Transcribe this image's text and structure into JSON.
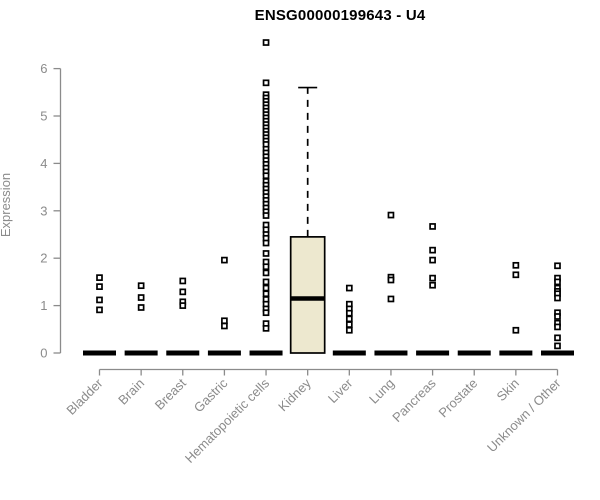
{
  "chart_data": {
    "type": "boxplot",
    "title": "ENSG00000199643 - U4",
    "ylabel": "Expression",
    "xlabel": "",
    "ylim": [
      0,
      6
    ],
    "yticks": [
      0,
      1,
      2,
      3,
      4,
      5,
      6
    ],
    "grid": false,
    "legend": "none",
    "categories": [
      "Bladder",
      "Brain",
      "Breast",
      "Gastric",
      "Hematopoietic cells",
      "Kidney",
      "Liver",
      "Lung",
      "Pancreas",
      "Prostate",
      "Skin",
      "Unknown / Other"
    ],
    "series": [
      {
        "category": "Bladder",
        "zero_bar": true,
        "points": [
          1.59,
          1.4,
          1.12,
          0.91
        ]
      },
      {
        "category": "Brain",
        "zero_bar": true,
        "points": [
          1.42,
          1.17,
          0.96
        ]
      },
      {
        "category": "Breast",
        "zero_bar": true,
        "points": [
          1.52,
          1.29,
          1.08,
          1.0
        ]
      },
      {
        "category": "Gastric",
        "zero_bar": true,
        "points": [
          1.96,
          0.68,
          0.57
        ]
      },
      {
        "category": "Hematopoietic cells",
        "zero_bar": true,
        "points": [
          6.55,
          5.7,
          5.45,
          5.38,
          5.31,
          5.24,
          5.17,
          5.1,
          5.03,
          4.96,
          4.89,
          4.82,
          4.75,
          4.68,
          4.61,
          4.54,
          4.47,
          4.4,
          4.3,
          4.22,
          4.14,
          4.06,
          3.98,
          3.9,
          3.82,
          3.74,
          3.62,
          3.54,
          3.46,
          3.38,
          3.3,
          3.22,
          3.14,
          3.06,
          2.98,
          2.9,
          2.7,
          2.6,
          2.5,
          2.42,
          2.32,
          2.1,
          1.92,
          1.82,
          1.69,
          1.5,
          1.37,
          1.25,
          1.13,
          1.03,
          0.93,
          0.85,
          0.62,
          0.52
        ]
      },
      {
        "category": "Kidney",
        "zero_bar": false,
        "box": {
          "whisker_low": 0,
          "q1": 0,
          "median": 1.15,
          "q3": 2.45,
          "whisker_high": 5.6
        },
        "points": []
      },
      {
        "category": "Liver",
        "zero_bar": true,
        "points": [
          1.37,
          1.03,
          0.93,
          0.84,
          0.72,
          0.6,
          0.48
        ]
      },
      {
        "category": "Lung",
        "zero_bar": true,
        "points": [
          2.91,
          1.6,
          1.54,
          1.14
        ]
      },
      {
        "category": "Pancreas",
        "zero_bar": true,
        "points": [
          2.67,
          2.17,
          1.96,
          1.58,
          1.43
        ]
      },
      {
        "category": "Prostate",
        "zero_bar": true,
        "points": []
      },
      {
        "category": "Skin",
        "zero_bar": true,
        "points": [
          1.85,
          1.65,
          0.48
        ]
      },
      {
        "category": "Unknown / Other",
        "zero_bar": true,
        "points": [
          1.84,
          1.58,
          1.5,
          1.37,
          1.3,
          1.25,
          1.16,
          0.85,
          0.77,
          0.63,
          0.55,
          0.32,
          0.15
        ]
      }
    ],
    "colors": {
      "title": "#000000",
      "axis": "#8b8b8b",
      "tick_label": "#8b8b8b",
      "point_stroke": "#000000",
      "point_fill": "#ffffff",
      "zero_bar": "#000000",
      "box_fill": "#ede8cf",
      "box_stroke": "#000000"
    }
  }
}
